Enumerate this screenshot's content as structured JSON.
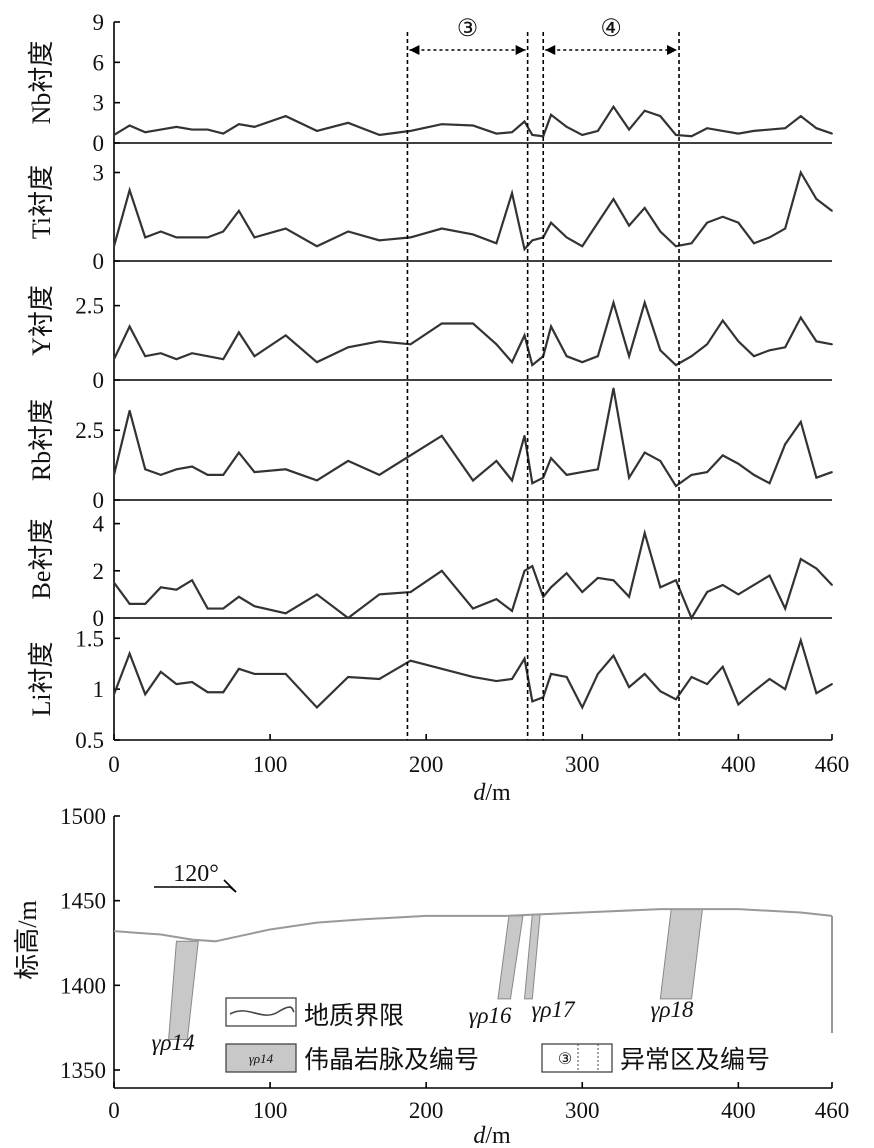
{
  "chart_data": [
    {
      "type": "line",
      "panels": [
        {
          "ylabel": "Nb衬度",
          "ylim": [
            0,
            9
          ],
          "ticks": [
            0,
            3,
            6,
            9
          ],
          "x": [
            0,
            10,
            20,
            30,
            40,
            50,
            60,
            70,
            80,
            90,
            110,
            130,
            150,
            170,
            190,
            210,
            230,
            245,
            255,
            263,
            268,
            275,
            280,
            290,
            300,
            310,
            320,
            330,
            340,
            350,
            360,
            370,
            380,
            390,
            400,
            410,
            420,
            430,
            440,
            450,
            460
          ],
          "values": [
            0.6,
            1.3,
            0.8,
            1.0,
            1.2,
            1.0,
            1.0,
            0.7,
            1.4,
            1.2,
            2.0,
            0.9,
            1.5,
            0.6,
            0.9,
            1.4,
            1.3,
            0.7,
            0.8,
            1.6,
            0.6,
            0.5,
            2.1,
            1.2,
            0.6,
            0.9,
            2.7,
            1.0,
            2.4,
            2.0,
            0.6,
            0.5,
            1.1,
            0.9,
            0.7,
            0.9,
            1.0,
            1.1,
            2.0,
            1.1,
            0.7
          ]
        },
        {
          "ylabel": "Ti衬度",
          "ylim": [
            0,
            4
          ],
          "ticks": [
            0,
            3
          ],
          "x": [
            0,
            10,
            20,
            30,
            40,
            50,
            60,
            70,
            80,
            90,
            110,
            130,
            150,
            170,
            190,
            210,
            230,
            245,
            255,
            263,
            268,
            275,
            280,
            290,
            300,
            310,
            320,
            330,
            340,
            350,
            360,
            370,
            380,
            390,
            400,
            410,
            420,
            430,
            440,
            450,
            460
          ],
          "values": [
            0.5,
            2.4,
            0.8,
            1.0,
            0.8,
            0.8,
            0.8,
            1.0,
            1.7,
            0.8,
            1.1,
            0.5,
            1.0,
            0.7,
            0.8,
            1.1,
            0.9,
            0.6,
            2.3,
            0.4,
            0.7,
            0.8,
            1.3,
            0.8,
            0.5,
            1.3,
            2.1,
            1.2,
            1.8,
            1.0,
            0.5,
            0.6,
            1.3,
            1.5,
            1.3,
            0.6,
            0.8,
            1.1,
            3.0,
            2.1,
            1.7
          ]
        },
        {
          "ylabel": "Y衬度",
          "ylim": [
            0,
            4
          ],
          "ticks": [
            0,
            2.5
          ],
          "x": [
            0,
            10,
            20,
            30,
            40,
            50,
            60,
            70,
            80,
            90,
            110,
            130,
            150,
            170,
            190,
            210,
            230,
            245,
            255,
            263,
            268,
            275,
            280,
            290,
            300,
            310,
            320,
            330,
            340,
            350,
            360,
            370,
            380,
            390,
            400,
            410,
            420,
            430,
            440,
            450,
            460
          ],
          "values": [
            0.7,
            1.8,
            0.8,
            0.9,
            0.7,
            0.9,
            0.8,
            0.7,
            1.6,
            0.8,
            1.5,
            0.6,
            1.1,
            1.3,
            1.2,
            1.9,
            1.9,
            1.2,
            0.6,
            1.5,
            0.5,
            0.8,
            1.8,
            0.8,
            0.6,
            0.8,
            2.6,
            0.8,
            2.6,
            1.0,
            0.5,
            0.8,
            1.2,
            2.0,
            1.3,
            0.8,
            1.0,
            1.1,
            2.1,
            1.3,
            1.2
          ]
        },
        {
          "ylabel": "Rb衬度",
          "ylim": [
            0,
            4.3
          ],
          "ticks": [
            0,
            2.5
          ],
          "x": [
            0,
            10,
            20,
            30,
            40,
            50,
            60,
            70,
            80,
            90,
            110,
            130,
            150,
            170,
            190,
            210,
            230,
            245,
            255,
            263,
            268,
            275,
            280,
            290,
            300,
            310,
            320,
            330,
            340,
            350,
            360,
            370,
            380,
            390,
            400,
            410,
            420,
            430,
            440,
            450,
            460
          ],
          "values": [
            0.9,
            3.2,
            1.1,
            0.9,
            1.1,
            1.2,
            0.9,
            0.9,
            1.7,
            1.0,
            1.1,
            0.7,
            1.4,
            0.9,
            1.6,
            2.3,
            0.7,
            1.4,
            0.7,
            2.3,
            0.6,
            0.8,
            1.5,
            0.9,
            1.0,
            1.1,
            4.0,
            0.8,
            1.7,
            1.4,
            0.5,
            0.9,
            1.0,
            1.6,
            1.3,
            0.9,
            0.6,
            2.0,
            2.8,
            0.8,
            1.0
          ]
        },
        {
          "ylabel": "Be衬度",
          "ylim": [
            0,
            5
          ],
          "ticks": [
            0,
            2,
            4
          ],
          "x": [
            0,
            10,
            20,
            30,
            40,
            50,
            60,
            70,
            80,
            90,
            110,
            130,
            150,
            170,
            190,
            210,
            230,
            245,
            255,
            263,
            268,
            275,
            280,
            290,
            300,
            310,
            320,
            330,
            340,
            350,
            360,
            370,
            380,
            390,
            400,
            410,
            420,
            430,
            440,
            450,
            460
          ],
          "values": [
            1.5,
            0.6,
            0.6,
            1.3,
            1.2,
            1.6,
            0.4,
            0.4,
            0.9,
            0.5,
            0.2,
            1.0,
            0.0,
            1.0,
            1.1,
            2.0,
            0.4,
            0.8,
            0.3,
            2.0,
            2.2,
            0.9,
            1.3,
            1.9,
            1.1,
            1.7,
            1.6,
            0.9,
            3.6,
            1.3,
            1.6,
            0.0,
            1.1,
            1.4,
            1.0,
            1.4,
            1.8,
            0.4,
            2.5,
            2.1,
            1.4
          ]
        },
        {
          "ylabel": "Li衬度",
          "ylim": [
            0.5,
            1.7
          ],
          "ticks": [
            0.5,
            1,
            1.5
          ],
          "x": [
            0,
            10,
            20,
            30,
            40,
            50,
            60,
            70,
            80,
            90,
            110,
            130,
            150,
            170,
            190,
            210,
            230,
            245,
            255,
            263,
            268,
            275,
            280,
            290,
            300,
            310,
            320,
            330,
            340,
            350,
            360,
            370,
            380,
            390,
            400,
            410,
            420,
            430,
            440,
            450,
            460
          ],
          "values": [
            0.95,
            1.35,
            0.95,
            1.17,
            1.05,
            1.07,
            0.97,
            0.97,
            1.2,
            1.15,
            1.15,
            0.82,
            1.12,
            1.1,
            1.28,
            1.2,
            1.12,
            1.08,
            1.1,
            1.3,
            0.88,
            0.92,
            1.15,
            1.12,
            0.82,
            1.15,
            1.33,
            1.02,
            1.15,
            0.98,
            0.9,
            1.12,
            1.05,
            1.22,
            0.85,
            0.98,
            1.1,
            1.0,
            1.48,
            0.96,
            1.05
          ]
        }
      ],
      "xlim": [
        0,
        460
      ],
      "xticks": [
        0,
        100,
        200,
        300,
        400,
        460
      ],
      "xlabel_italic": "d",
      "xlabel_unit": "/m",
      "anomaly_zones": [
        {
          "label": "③",
          "start": 188,
          "end": 265
        },
        {
          "label": "④",
          "start": 275,
          "end": 362
        }
      ]
    },
    {
      "type": "cross-section",
      "ylabel": "标高/m",
      "ylim": [
        1350,
        1500
      ],
      "yticks": [
        1350,
        1400,
        1450,
        1500
      ],
      "xlim": [
        0,
        460
      ],
      "xticks": [
        0,
        100,
        200,
        300,
        400,
        460
      ],
      "xlabel_italic": "d",
      "xlabel_unit": "/m",
      "direction": "120°",
      "surface": [
        [
          0,
          1432
        ],
        [
          30,
          1430
        ],
        [
          50,
          1427
        ],
        [
          65,
          1426
        ],
        [
          75,
          1428
        ],
        [
          100,
          1433
        ],
        [
          130,
          1437
        ],
        [
          160,
          1439
        ],
        [
          200,
          1441
        ],
        [
          250,
          1441
        ],
        [
          300,
          1443
        ],
        [
          350,
          1445
        ],
        [
          400,
          1445
        ],
        [
          440,
          1443
        ],
        [
          460,
          1441
        ]
      ],
      "dikes": [
        {
          "label": "γρ14",
          "top": [
            [
              40,
              1426
            ],
            [
              54,
              1426
            ]
          ],
          "bottom": [
            [
              35,
              1368
            ],
            [
              47,
              1368
            ]
          ]
        },
        {
          "label": "γρ16",
          "top": [
            [
              253,
              1441
            ],
            [
              262,
              1441
            ]
          ],
          "bottom": [
            [
              246,
              1392
            ],
            [
              254,
              1392
            ]
          ]
        },
        {
          "label": "γρ17",
          "top": [
            [
              268,
              1442
            ],
            [
              273,
              1442
            ]
          ],
          "bottom": [
            [
              263,
              1392
            ],
            [
              268,
              1392
            ]
          ]
        },
        {
          "label": "γρ18",
          "top": [
            [
              357,
              1445
            ],
            [
              377,
              1445
            ]
          ],
          "bottom": [
            [
              350,
              1392
            ],
            [
              370,
              1392
            ]
          ]
        }
      ],
      "legend": [
        {
          "key": "boundary",
          "text": "地质界限"
        },
        {
          "key": "dike",
          "swatch": "γρ14",
          "text": "伟晶岩脉及编号"
        },
        {
          "key": "zone",
          "swatch": "③",
          "text": "异常区及编号"
        }
      ]
    }
  ]
}
